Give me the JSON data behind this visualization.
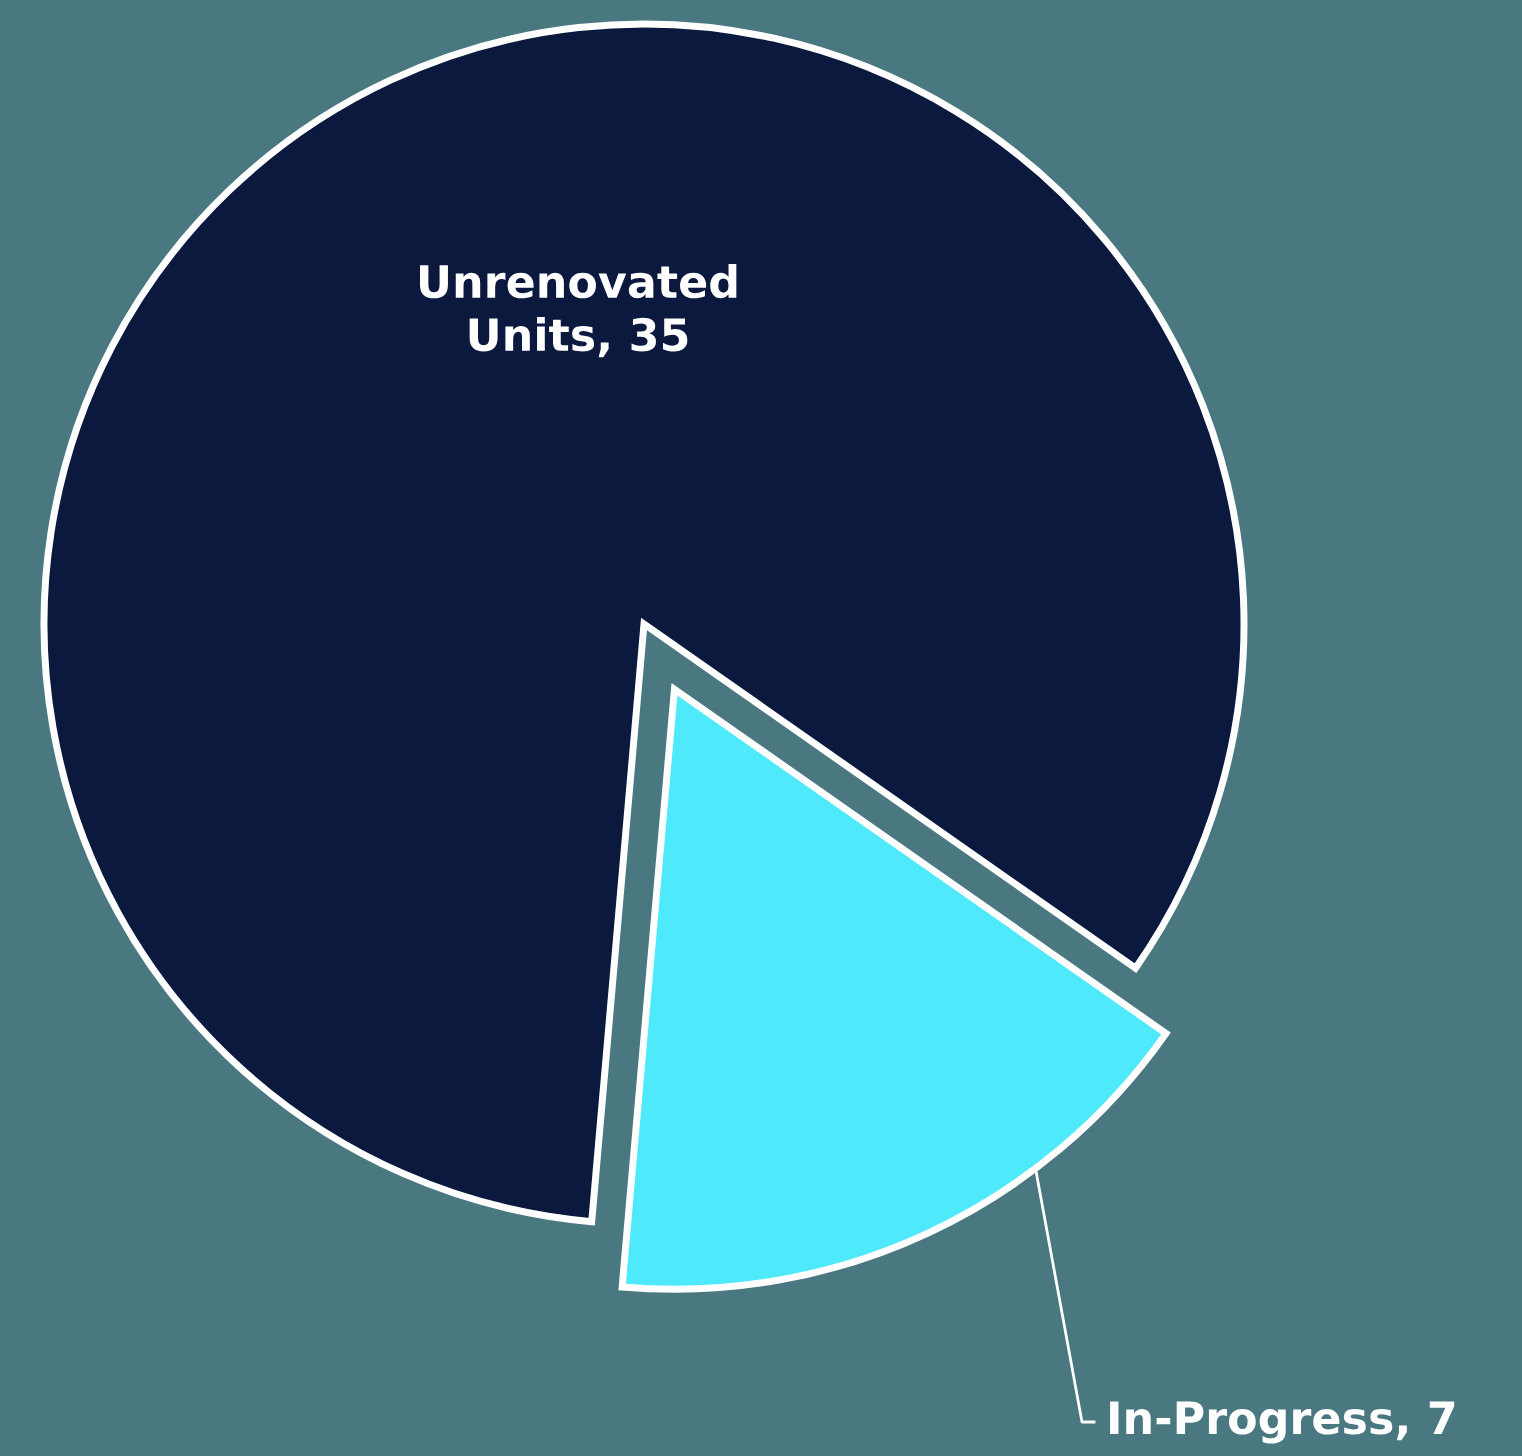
{
  "chart_data": {
    "type": "pie",
    "categories": [
      "Unrenovated Units, 35",
      "In-Progress, 7"
    ],
    "values": [
      35,
      7
    ],
    "colors": [
      "#0a193d",
      "#4eeafc"
    ]
  }
}
